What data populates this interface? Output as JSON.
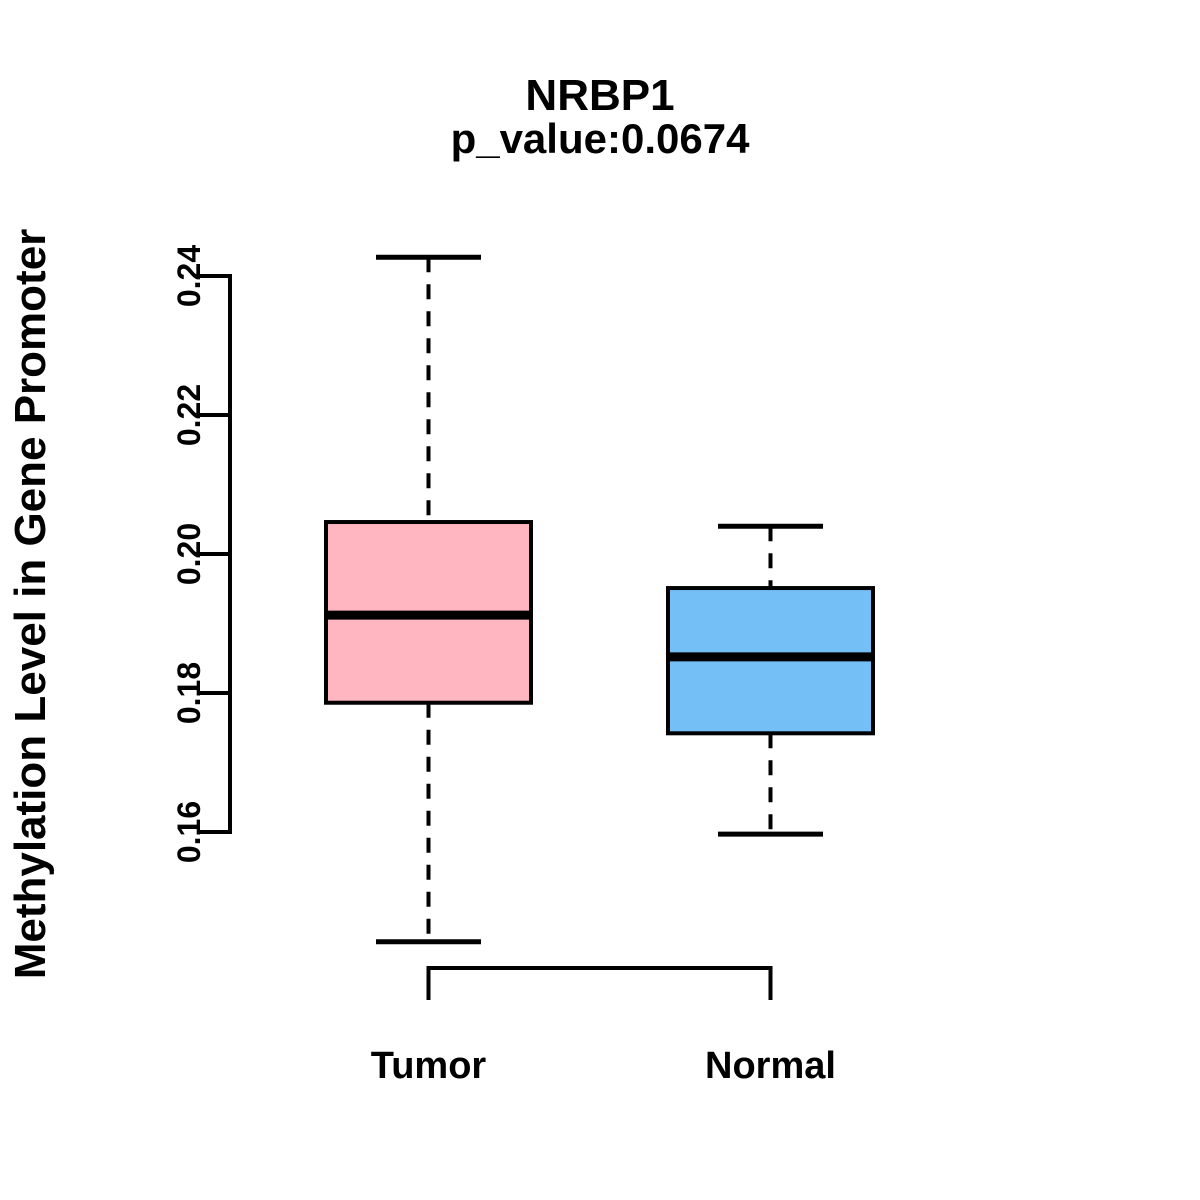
{
  "chart_data": {
    "type": "boxplot",
    "title": "NRBP1",
    "subtitle": "p_value:0.0674",
    "ylabel": "Methylation Level in Gene Promoter",
    "xlabel": "",
    "categories": [
      "Tumor",
      "Normal"
    ],
    "ylim": [
      0.16,
      0.24
    ],
    "yticks": [
      0.16,
      0.18,
      0.2,
      0.22,
      0.24
    ],
    "ytick_labels": [
      "0.16",
      "0.18",
      "0.20",
      "0.22",
      "0.24"
    ],
    "grid": false,
    "legend": "none",
    "colors": {
      "tumor_fill": "#FFB6C1",
      "normal_fill": "#74BFF5",
      "line": "#000000",
      "background": "#FFFFFF"
    },
    "series": [
      {
        "name": "Tumor",
        "fill": "#FFB6C1",
        "whisker_low": 0.1442,
        "q1": 0.1786,
        "median": 0.1912,
        "q3": 0.2046,
        "whisker_high": 0.2427
      },
      {
        "name": "Normal",
        "fill": "#74BFF5",
        "whisker_low": 0.1597,
        "q1": 0.1742,
        "median": 0.1852,
        "q3": 0.1951,
        "whisker_high": 0.204
      }
    ]
  }
}
